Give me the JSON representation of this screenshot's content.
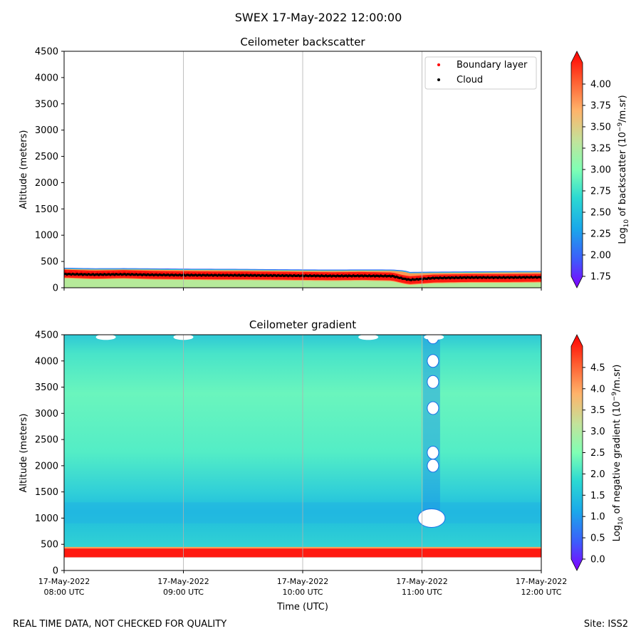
{
  "figure_title": "SWEX 17-May-2022 12:00:00",
  "footer": {
    "left": "REAL TIME DATA, NOT CHECKED FOR QUALITY",
    "right": "Site: ISS2"
  },
  "chart_data": [
    {
      "type": "heatmap",
      "title": "Ceilometer backscatter",
      "ylabel": "Altitude (meters)",
      "xlabel": "",
      "ylim": [
        0,
        4500
      ],
      "yticks": [
        0,
        500,
        1000,
        1500,
        2000,
        2500,
        3000,
        3500,
        4000,
        4500
      ],
      "x_ticks_hours": [
        8,
        9,
        10,
        11,
        12
      ],
      "grid": "vertical",
      "legend": {
        "position": "upper-right",
        "entries": [
          {
            "label": "Boundary layer",
            "color": "#ff0000"
          },
          {
            "label": "Cloud",
            "color": "#000000"
          }
        ]
      },
      "colorbar": {
        "label_prefix": "Log",
        "label_sub": "10",
        "label_mid": " of backscatter (10",
        "label_sup": "−9",
        "label_suffix": "/m.sr)",
        "min": 1.75,
        "max": 4.25,
        "ticks": [
          "1.75",
          "2.00",
          "2.25",
          "2.50",
          "2.75",
          "3.00",
          "3.25",
          "3.50",
          "3.75",
          "4.00"
        ]
      },
      "layer_top_m": [
        380,
        370,
        372,
        368,
        362,
        360,
        358,
        352,
        348,
        345,
        348,
        346,
        330,
        300,
        305,
        310,
        315,
        318
      ],
      "layer_time_h": [
        8.0,
        8.25,
        8.5,
        8.75,
        9.0,
        9.25,
        9.5,
        9.75,
        10.0,
        10.25,
        10.5,
        10.75,
        10.85,
        10.9,
        11.1,
        11.4,
        11.7,
        12.0
      ],
      "boundary_layer_m": [
        290,
        270,
        280,
        265,
        260,
        255,
        255,
        250,
        245,
        240,
        245,
        235,
        180,
        165,
        195,
        205,
        205,
        210
      ],
      "cloud_m": [
        260,
        250,
        255,
        245,
        240,
        238,
        236,
        232,
        228,
        224,
        226,
        222,
        170,
        150,
        185,
        195,
        195,
        200
      ]
    },
    {
      "type": "heatmap",
      "title": "Ceilometer gradient",
      "ylabel": "Altitude (meters)",
      "xlabel": "Time (UTC)",
      "ylim": [
        0,
        4500
      ],
      "yticks": [
        0,
        500,
        1000,
        1500,
        2000,
        2500,
        3000,
        3500,
        4000,
        4500
      ],
      "x_ticks": [
        {
          "date": "17-May-2022",
          "time": "08:00 UTC",
          "h": 8
        },
        {
          "date": "17-May-2022",
          "time": "09:00 UTC",
          "h": 9
        },
        {
          "date": "17-May-2022",
          "time": "10:00 UTC",
          "h": 10
        },
        {
          "date": "17-May-2022",
          "time": "11:00 UTC",
          "h": 11
        },
        {
          "date": "17-May-2022",
          "time": "12:00 UTC",
          "h": 12
        }
      ],
      "grid": "vertical",
      "colorbar": {
        "label_prefix": "Log",
        "label_sub": "10",
        "label_mid": " of negative gradient (10",
        "label_sup": "−9",
        "label_suffix": "/m.sr)",
        "min": 0.0,
        "max": 5.0,
        "ticks": [
          "0.0",
          "0.5",
          "1.0",
          "1.5",
          "2.0",
          "2.5",
          "3.0",
          "3.5",
          "4.0",
          "4.5"
        ]
      },
      "surface_band_m": [
        250,
        420
      ],
      "low_gradient_band_m": [
        900,
        1300
      ],
      "missing_data_time_h": 11.08,
      "missing_data_altitudes_m": [
        1000,
        2000,
        2250,
        3100,
        3600,
        4000,
        4450
      ]
    }
  ]
}
